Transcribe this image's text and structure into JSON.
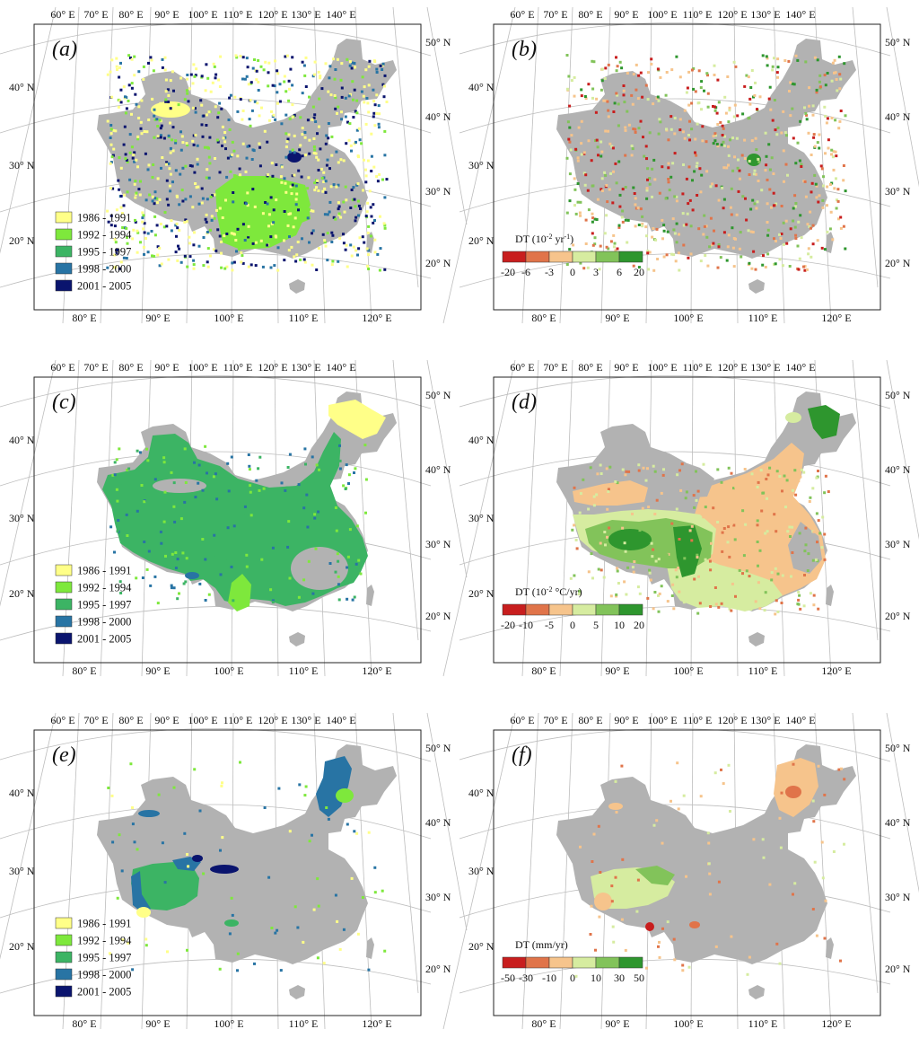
{
  "ticks": {
    "top": [
      "60° E",
      "70° E",
      "80° E",
      "90° E",
      "100° E",
      "110° E",
      "120° E",
      "130° E",
      "140° E"
    ],
    "bottom": [
      "80° E",
      "90° E",
      "100° E",
      "110° E",
      "120° E"
    ],
    "left": [
      "40° N",
      "30° N",
      "20° N"
    ],
    "right": [
      "50° N",
      "40° N",
      "30° N",
      "20° N"
    ]
  },
  "colors": {
    "land": "#b2b2b2",
    "period": [
      "#ffff88",
      "#7ee83c",
      "#3cb464",
      "#2874a4",
      "#0a146e"
    ],
    "diverging": [
      "#c81e1e",
      "#e0744a",
      "#f6c48c",
      "#d6eca0",
      "#82c35a",
      "#2e962e"
    ]
  },
  "period_legend": [
    "1986 - 1991",
    "1992 - 1994",
    "1995 - 1997",
    "1998 - 2000",
    "2001 - 2005"
  ],
  "panels": [
    {
      "id": "a",
      "label": "(a)",
      "type": "period"
    },
    {
      "id": "b",
      "label": "(b)",
      "type": "trend",
      "cb_title": "DT",
      "cb_unit": "(10",
      "cb_sup": "-2",
      "cb_unit2": " yr",
      "cb_sup2": "-1",
      "cb_close": ")",
      "cb_labels": [
        "-20",
        "-6",
        "-3",
        "0",
        "3",
        "6",
        "20"
      ]
    },
    {
      "id": "c",
      "label": "(c)",
      "type": "period"
    },
    {
      "id": "d",
      "label": "(d)",
      "type": "trend",
      "cb_title": "DT",
      "cb_unit": "(10",
      "cb_sup": "-2",
      "cb_unit2": " °C/yr",
      "cb_sup2": "",
      "cb_close": ")",
      "cb_labels": [
        "-20",
        "-10",
        "-5",
        "0",
        "5",
        "10",
        "20"
      ]
    },
    {
      "id": "e",
      "label": "(e)",
      "type": "period"
    },
    {
      "id": "f",
      "label": "(f)",
      "type": "trend",
      "cb_title": "DT",
      "cb_unit": "(mm/yr)",
      "cb_sup": "",
      "cb_unit2": "",
      "cb_sup2": "",
      "cb_close": "",
      "cb_labels": [
        "-50",
        "-30",
        "-10",
        "0",
        "10",
        "30",
        "50"
      ]
    }
  ]
}
